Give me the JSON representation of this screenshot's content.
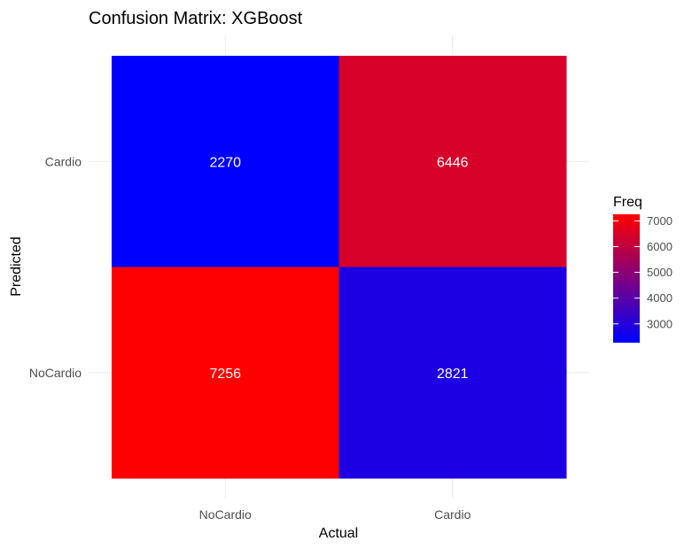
{
  "chart_data": {
    "type": "heatmap",
    "title": "Confusion Matrix: XGBoost",
    "xlabel": "Actual",
    "ylabel": "Predicted",
    "x_categories": [
      "NoCardio",
      "Cardio"
    ],
    "y_categories": [
      "NoCardio",
      "Cardio"
    ],
    "cells": [
      {
        "x": "NoCardio",
        "y": "Cardio",
        "value": 2270
      },
      {
        "x": "Cardio",
        "y": "Cardio",
        "value": 6446
      },
      {
        "x": "NoCardio",
        "y": "NoCardio",
        "value": 7256
      },
      {
        "x": "Cardio",
        "y": "NoCardio",
        "value": 2821
      }
    ],
    "color_scale": {
      "low": "#0000ff",
      "high": "#ff0000",
      "min": 2270,
      "max": 7256
    },
    "legend": {
      "title": "Freq",
      "ticks": [
        3000,
        4000,
        5000,
        6000,
        7000
      ],
      "position": "right"
    },
    "grid": true
  }
}
